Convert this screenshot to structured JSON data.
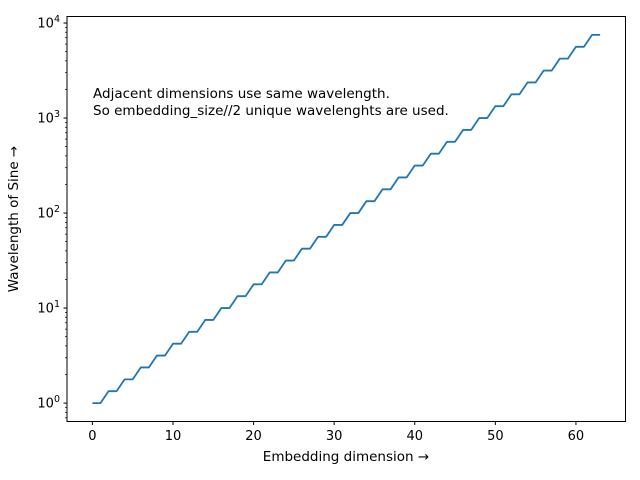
{
  "chart_data": {
    "type": "line",
    "xlabel": "Embedding dimension →",
    "ylabel": "Wavelength of Sine →",
    "annotation_lines": [
      "Adjacent dimensions use same wavelength.",
      "So embedding_size//2 unique wavelenghts are used."
    ],
    "yscale": "log",
    "grid": false,
    "legend": false,
    "line_color": "#1f77b4",
    "axis_color": "#000000",
    "xlim": [
      -3.15,
      66.15
    ],
    "ylim_log": [
      -0.19375,
      4.06875
    ],
    "xticks": [
      0,
      10,
      20,
      30,
      40,
      50,
      60
    ],
    "ytick_base": "10",
    "ytick_exponents": [
      0,
      1,
      2,
      3,
      4
    ],
    "x": [
      0,
      1,
      2,
      3,
      4,
      5,
      6,
      7,
      8,
      9,
      10,
      11,
      12,
      13,
      14,
      15,
      16,
      17,
      18,
      19,
      20,
      21,
      22,
      23,
      24,
      25,
      26,
      27,
      28,
      29,
      30,
      31,
      32,
      33,
      34,
      35,
      36,
      37,
      38,
      39,
      40,
      41,
      42,
      43,
      44,
      45,
      46,
      47,
      48,
      49,
      50,
      51,
      52,
      53,
      54,
      55,
      56,
      57,
      58,
      59,
      60,
      61,
      62,
      63
    ],
    "y": [
      1.0,
      1.0,
      1.3335,
      1.3335,
      1.7783,
      1.7783,
      2.3714,
      2.3714,
      3.1623,
      3.1623,
      4.217,
      4.217,
      5.6234,
      5.6234,
      7.4989,
      7.4989,
      10.0,
      10.0,
      13.335,
      13.335,
      17.783,
      17.783,
      23.714,
      23.714,
      31.623,
      31.623,
      42.17,
      42.17,
      56.234,
      56.234,
      74.989,
      74.989,
      100.0,
      100.0,
      133.35,
      133.35,
      177.83,
      177.83,
      237.14,
      237.14,
      316.23,
      316.23,
      421.7,
      421.7,
      562.34,
      562.34,
      749.89,
      749.89,
      1000.0,
      1000.0,
      1333.5,
      1333.5,
      1778.3,
      1778.3,
      2371.4,
      2371.4,
      3162.3,
      3162.3,
      4217.0,
      4217.0,
      5623.4,
      5623.4,
      7498.9,
      7498.9
    ]
  }
}
